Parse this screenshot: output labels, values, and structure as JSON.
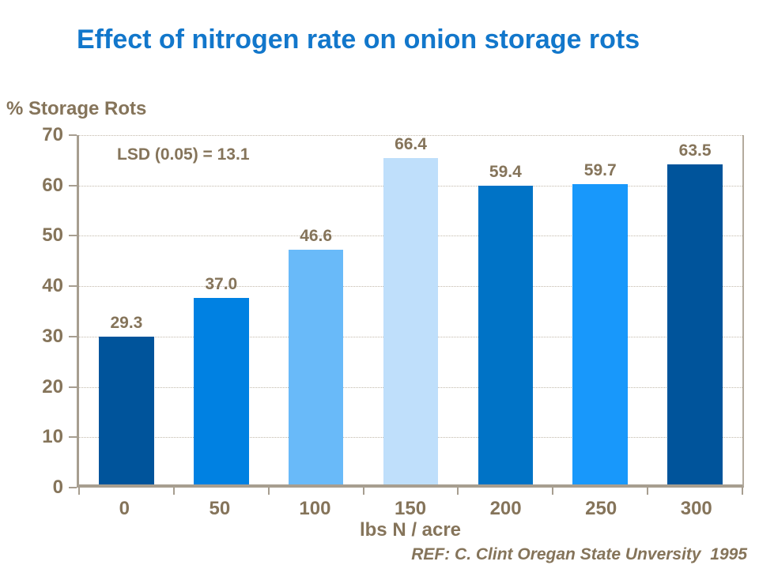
{
  "slide": {
    "title": "Effect of nitrogen rate on onion storage rots",
    "y_axis_header": "% Storage Rots",
    "annotation": "LSD (0.05) = 13.1",
    "reference": "REF: C. Clint Oregan State Unversity  1995"
  },
  "chart_data": {
    "type": "bar",
    "title": "Effect of nitrogen rate on onion storage rots",
    "categories": [
      "0",
      "50",
      "100",
      "150",
      "200",
      "250",
      "300"
    ],
    "values": [
      29.3,
      37.0,
      46.6,
      66.4,
      59.4,
      59.7,
      63.5
    ],
    "value_labels": [
      "29.3",
      "37.0",
      "46.6",
      "66.4",
      "59.4",
      "59.7",
      "63.5"
    ],
    "bar_colors": [
      "#00549B",
      "#0081E2",
      "#69BAF9",
      "#BFDFFB",
      "#0073C6",
      "#1898FB",
      "#00549B"
    ],
    "xlabel": "lbs N / acre",
    "ylabel": "% Storage Rots",
    "ylim": [
      0,
      70
    ],
    "ytick_step": 10,
    "yticks": [
      0,
      10,
      20,
      30,
      40,
      50,
      60,
      70
    ],
    "grid": "horizontal-dotted",
    "legend": "none",
    "annotation": "LSD (0.05) = 13.1"
  },
  "colors": {
    "title_text": "#1277CB",
    "axis_text": "#85745A",
    "axis_line": "#A79E90",
    "gridline": "#C2B9AB",
    "background": "#FFFFFF"
  }
}
